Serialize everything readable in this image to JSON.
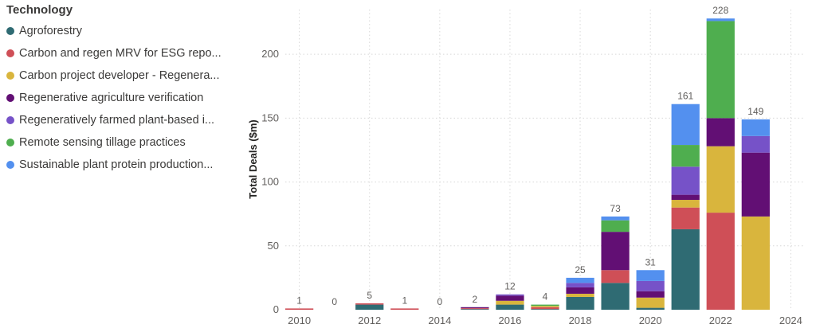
{
  "legend": {
    "title": "Technology",
    "items": [
      {
        "label": "Agroforestry",
        "color": "#2f6b73"
      },
      {
        "label": "Carbon and regen MRV for ESG repo...",
        "color": "#cf4f57"
      },
      {
        "label": "Carbon project developer - Regenera...",
        "color": "#d9b53d"
      },
      {
        "label": "Regenerative agriculture verification",
        "color": "#620f74"
      },
      {
        "label": "Regeneratively farmed plant-based i...",
        "color": "#7652c8"
      },
      {
        "label": "Remote sensing tillage practices",
        "color": "#4fae4f"
      },
      {
        "label": "Sustainable plant protein production...",
        "color": "#5390ef"
      }
    ]
  },
  "chart_data": {
    "type": "bar",
    "stacked": true,
    "xlabel": "",
    "ylabel": "Total Deals ($m)",
    "ylim": [
      0,
      235
    ],
    "yticks": [
      0,
      50,
      100,
      150,
      200
    ],
    "xlim": [
      2009.6,
      2024.4
    ],
    "xticks": [
      2010,
      2012,
      2014,
      2016,
      2018,
      2020,
      2022,
      2024
    ],
    "grid": true,
    "legend_position": "left",
    "x": [
      2010,
      2011,
      2012,
      2013,
      2014,
      2015,
      2016,
      2017,
      2018,
      2019,
      2020,
      2021,
      2022,
      2023
    ],
    "totals": [
      1,
      0,
      5,
      1,
      0,
      2,
      12,
      4,
      25,
      73,
      31,
      161,
      228,
      149
    ],
    "series": [
      {
        "name": "Agroforestry",
        "values": [
          0,
          0,
          4,
          0,
          0,
          0.5,
          4,
          0.5,
          10,
          21,
          1.5,
          63,
          0,
          0
        ]
      },
      {
        "name": "Carbon and regen MRV for ESG repo...",
        "values": [
          1,
          0,
          1,
          1,
          0,
          0.7,
          0,
          1.5,
          0,
          10,
          0,
          17,
          76,
          0
        ]
      },
      {
        "name": "Carbon project developer - Regenera...",
        "values": [
          0,
          0,
          0,
          0,
          0,
          0,
          3,
          1,
          2.5,
          0,
          8,
          6,
          52,
          73
        ]
      },
      {
        "name": "Regenerative agriculture verification",
        "values": [
          0,
          0,
          0,
          0,
          0,
          0.8,
          4,
          0,
          5,
          30,
          5,
          4,
          22,
          50
        ]
      },
      {
        "name": "Regeneratively farmed plant-based i...",
        "values": [
          0,
          0,
          0,
          0,
          0,
          0,
          1,
          0,
          3.5,
          0,
          8,
          22,
          0,
          13
        ]
      },
      {
        "name": "Remote sensing tillage practices",
        "values": [
          0,
          0,
          0,
          0,
          0,
          0,
          0,
          1,
          0,
          9,
          0,
          17,
          76,
          0
        ]
      },
      {
        "name": "Sustainable plant protein production...",
        "values": [
          0,
          0,
          0,
          0,
          0,
          0,
          0,
          0,
          4,
          3,
          8.5,
          32,
          2,
          13
        ]
      }
    ]
  }
}
